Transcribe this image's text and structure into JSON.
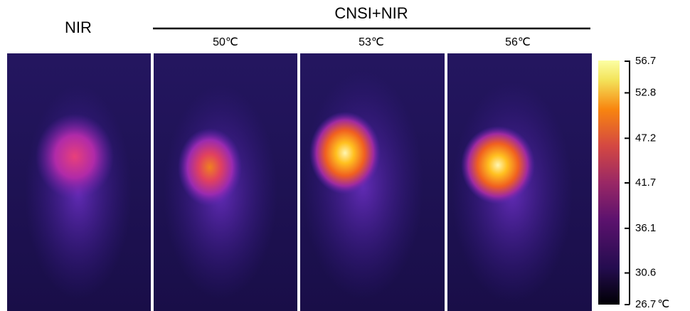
{
  "header": {
    "left_label": "NIR",
    "group_label": "CNSI+NIR"
  },
  "panels": [
    {
      "label": "50℃"
    },
    {
      "label": "53℃"
    },
    {
      "label": "56℃"
    }
  ],
  "colorbar": {
    "min": 26.7,
    "max": 56.7,
    "ticks": [
      56.7,
      52.8,
      47.2,
      41.7,
      36.1,
      30.6,
      26.7
    ],
    "unit": "℃"
  }
}
